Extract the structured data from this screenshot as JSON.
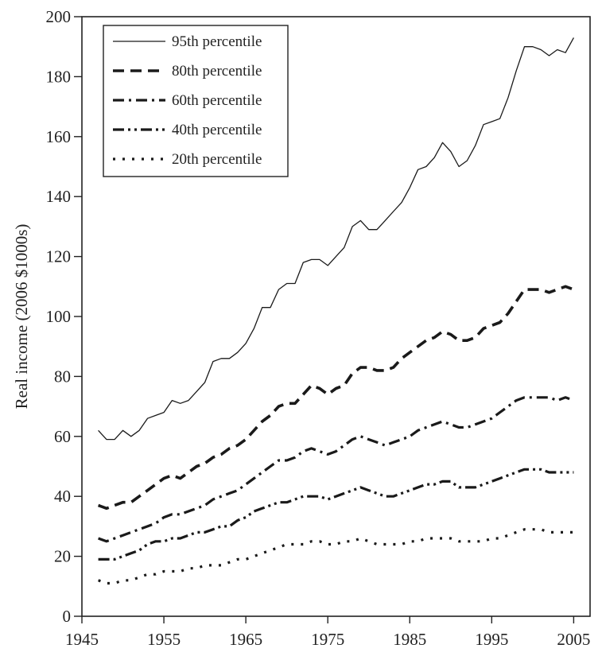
{
  "chart_data": {
    "type": "line",
    "title": "",
    "xlabel": "",
    "ylabel": "Real income (2006 $1000s)",
    "xlim": [
      1945,
      2007
    ],
    "ylim": [
      0,
      200
    ],
    "xticks": [
      1945,
      1955,
      1965,
      1975,
      1985,
      1995,
      2005
    ],
    "yticks": [
      0,
      20,
      40,
      60,
      80,
      100,
      120,
      140,
      160,
      180,
      200
    ],
    "grid": false,
    "legend_position": "top-left",
    "x": [
      1947,
      1948,
      1949,
      1950,
      1951,
      1952,
      1953,
      1954,
      1955,
      1956,
      1957,
      1958,
      1959,
      1960,
      1961,
      1962,
      1963,
      1964,
      1965,
      1966,
      1967,
      1968,
      1969,
      1970,
      1971,
      1972,
      1973,
      1974,
      1975,
      1976,
      1977,
      1978,
      1979,
      1980,
      1981,
      1982,
      1983,
      1984,
      1985,
      1986,
      1987,
      1988,
      1989,
      1990,
      1991,
      1992,
      1993,
      1994,
      1995,
      1996,
      1997,
      1998,
      1999,
      2000,
      2001,
      2002,
      2003,
      2004,
      2005
    ],
    "series": [
      {
        "name": "95th percentile",
        "line_style": "solid",
        "stroke_width": 1.3,
        "values": [
          62,
          59,
          59,
          62,
          60,
          62,
          66,
          67,
          68,
          72,
          71,
          72,
          75,
          78,
          85,
          86,
          86,
          88,
          91,
          96,
          103,
          103,
          109,
          111,
          111,
          118,
          119,
          119,
          117,
          120,
          123,
          130,
          132,
          129,
          129,
          132,
          135,
          138,
          143,
          149,
          150,
          153,
          158,
          155,
          150,
          152,
          157,
          164,
          165,
          166,
          173,
          182,
          190,
          190,
          189,
          187,
          189,
          188,
          193
        ]
      },
      {
        "name": "80th percentile",
        "line_style": "long-dash",
        "stroke_width": 3.6,
        "values": [
          37,
          36,
          37,
          38,
          38,
          40,
          42,
          44,
          46,
          47,
          46,
          48,
          50,
          51,
          53,
          54,
          56,
          57,
          59,
          62,
          65,
          67,
          70,
          71,
          71,
          74,
          77,
          76,
          74,
          76,
          77,
          81,
          83,
          83,
          82,
          82,
          83,
          86,
          88,
          90,
          92,
          93,
          95,
          94,
          92,
          92,
          93,
          96,
          97,
          98,
          101,
          105,
          109,
          109,
          109,
          108,
          109,
          110,
          109
        ]
      },
      {
        "name": "60th percentile",
        "line_style": "dash-dot",
        "stroke_width": 3.2,
        "values": [
          26,
          25,
          26,
          27,
          28,
          29,
          30,
          31,
          33,
          34,
          34,
          35,
          36,
          37,
          39,
          40,
          41,
          42,
          44,
          46,
          48,
          50,
          52,
          52,
          53,
          55,
          56,
          55,
          54,
          55,
          57,
          59,
          60,
          59,
          58,
          57,
          58,
          59,
          60,
          62,
          63,
          64,
          65,
          64,
          63,
          63,
          64,
          65,
          66,
          68,
          70,
          72,
          73,
          73,
          73,
          73,
          72,
          73,
          72
        ]
      },
      {
        "name": "40th percentile",
        "line_style": "dash-dot-dot",
        "stroke_width": 3.2,
        "values": [
          19,
          19,
          19,
          20,
          21,
          22,
          24,
          25,
          25,
          26,
          26,
          27,
          28,
          28,
          29,
          30,
          30,
          32,
          33,
          35,
          36,
          37,
          38,
          38,
          39,
          40,
          40,
          40,
          39,
          40,
          41,
          42,
          43,
          42,
          41,
          40,
          40,
          41,
          42,
          43,
          44,
          44,
          45,
          45,
          43,
          43,
          43,
          44,
          45,
          46,
          47,
          48,
          49,
          49,
          49,
          48,
          48,
          48,
          48
        ]
      },
      {
        "name": "20th percentile",
        "line_style": "dotted",
        "stroke_width": 3.2,
        "values": [
          12,
          11,
          11,
          12,
          12,
          13,
          14,
          14,
          15,
          15,
          15,
          16,
          16,
          17,
          17,
          17,
          18,
          19,
          19,
          20,
          21,
          22,
          23,
          24,
          24,
          24,
          25,
          25,
          24,
          24,
          25,
          25,
          26,
          25,
          24,
          24,
          24,
          24,
          25,
          25,
          26,
          26,
          26,
          26,
          25,
          25,
          25,
          25,
          26,
          26,
          27,
          28,
          29,
          29,
          29,
          28,
          28,
          28,
          28
        ]
      }
    ]
  },
  "colors": {
    "line": "#1a1a1a",
    "axis": "#222222",
    "background": "#ffffff"
  }
}
